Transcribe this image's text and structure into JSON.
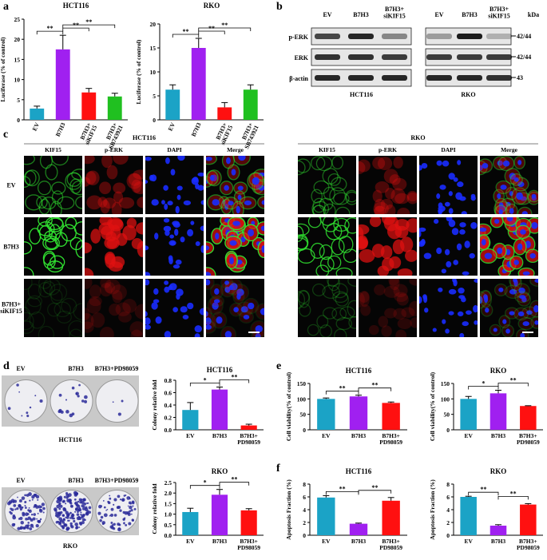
{
  "panel_labels": [
    "a",
    "b",
    "c",
    "d",
    "e",
    "f"
  ],
  "chart_data": [
    {
      "type": "bar",
      "title": "HCT116",
      "y_label": "Luciferase (% of control)",
      "categories": [
        "EV",
        "B7H3",
        "B7H3+\nsiKIF15",
        "B7H3+\nSB743921"
      ],
      "values": [
        2.8,
        17.5,
        6.8,
        5.8
      ],
      "errors": [
        0.6,
        3.5,
        1.0,
        0.8
      ],
      "colors": [
        "#1ba3c6",
        "#a020f0",
        "#ff1010",
        "#20c020"
      ],
      "ylim": [
        0,
        25
      ],
      "yticks": [
        0,
        5,
        10,
        15,
        20,
        25
      ],
      "annotations": [
        "**",
        "**",
        "**"
      ]
    },
    {
      "type": "bar",
      "title": "RKO",
      "y_label": "Luciferase (% of control)",
      "categories": [
        "EV",
        "B7H3",
        "B7H3+\nsiKIF15",
        "B7H3+\nSB743921"
      ],
      "values": [
        6.3,
        15,
        2.6,
        6.3
      ],
      "errors": [
        1.0,
        2.0,
        1.0,
        1.0
      ],
      "colors": [
        "#1ba3c6",
        "#a020f0",
        "#ff1010",
        "#20c020"
      ],
      "ylim": [
        0,
        20
      ],
      "yticks": [
        0,
        5,
        10,
        15,
        20
      ],
      "annotations": [
        "**",
        "**",
        "**"
      ]
    },
    {
      "type": "bar",
      "title": "HCT116",
      "y_label": "Colony relative fold",
      "categories": [
        "EV",
        "B7H3",
        "B7H3+\nPD98059"
      ],
      "values": [
        0.32,
        0.65,
        0.07
      ],
      "errors": [
        0.12,
        0.04,
        0.02
      ],
      "colors": [
        "#1ba3c6",
        "#a020f0",
        "#ff1010"
      ],
      "ylim": [
        0,
        0.8
      ],
      "yticks": [
        {
          "value": 0,
          "label": "0.0"
        },
        0.2,
        0.4,
        0.6,
        0.8
      ],
      "annotations": [
        "*",
        "**"
      ]
    },
    {
      "type": "bar",
      "title": "RKO",
      "y_label": "Colony relative fold",
      "categories": [
        "EV",
        "B7H3",
        "B7H3+\nPD98059"
      ],
      "values": [
        1.1,
        1.92,
        1.18
      ],
      "errors": [
        0.18,
        0.25,
        0.08
      ],
      "colors": [
        "#1ba3c6",
        "#a020f0",
        "#ff1010"
      ],
      "ylim": [
        0,
        2.5
      ],
      "yticks": [
        {
          "value": 0,
          "label": "0.0"
        },
        0.5,
        {
          "value": 1,
          "label": "1.0"
        },
        1.5,
        {
          "value": 2,
          "label": "2.0"
        },
        2.5
      ],
      "annotations": [
        "*",
        "**"
      ]
    },
    {
      "type": "bar",
      "title": "HCT116",
      "y_label": "Cell viability(% of control)",
      "categories": [
        "EV",
        "B7H3",
        "B7H3+\nPD98059"
      ],
      "values": [
        100,
        108,
        87
      ],
      "errors": [
        3,
        4,
        3
      ],
      "colors": [
        "#1ba3c6",
        "#a020f0",
        "#ff1010"
      ],
      "ylim": [
        0,
        150
      ],
      "yticks": [
        0,
        50,
        100,
        150
      ],
      "annotations": [
        "**",
        "**"
      ]
    },
    {
      "type": "bar",
      "title": "RKO",
      "y_label": "Cell viability(% of control)",
      "categories": [
        "EV",
        "B7H3",
        "B7H3+\nPD98059"
      ],
      "values": [
        100,
        118,
        77
      ],
      "errors": [
        8,
        10,
        1
      ],
      "colors": [
        "#1ba3c6",
        "#a020f0",
        "#ff1010"
      ],
      "ylim": [
        0,
        150
      ],
      "yticks": [
        0,
        50,
        100,
        150
      ],
      "annotations": [
        "*",
        "**"
      ]
    },
    {
      "type": "bar",
      "title": "HCT116",
      "y_label": "Apoptosis Fraction (%)",
      "categories": [
        "EV",
        "B7H3",
        "B7H3+\nPD98059"
      ],
      "values": [
        5.9,
        1.8,
        5.4
      ],
      "errors": [
        0.3,
        0.1,
        0.5
      ],
      "colors": [
        "#1ba3c6",
        "#a020f0",
        "#ff1010"
      ],
      "ylim": [
        0,
        8
      ],
      "yticks": [
        0,
        2,
        4,
        6,
        8
      ],
      "annotations": [
        "**",
        "**"
      ]
    },
    {
      "type": "bar",
      "title": "RKO",
      "y_label": "Apoptosis Fraction (%)",
      "categories": [
        "EV",
        "B7H3",
        "B7H3+\nPD98059"
      ],
      "values": [
        6.0,
        1.5,
        4.8
      ],
      "errors": [
        0.1,
        0.15,
        0.15
      ],
      "colors": [
        "#1ba3c6",
        "#a020f0",
        "#ff1010"
      ],
      "ylim": [
        0,
        8
      ],
      "yticks": [
        0,
        2,
        4,
        6,
        8
      ],
      "annotations": [
        "**",
        "**"
      ]
    }
  ],
  "western_blot": {
    "lanes": [
      "EV",
      "B7H3",
      "B7H3+\nsiKIF15"
    ],
    "unit": "kDa",
    "rows": [
      {
        "label": "p-ERK",
        "kda": "42/44"
      },
      {
        "label": "ERK",
        "kda": "42/44"
      },
      {
        "label": "β-actin",
        "kda": "43"
      }
    ],
    "cell_lines": [
      "HCT116",
      "RKO"
    ]
  },
  "immunofluorescence": {
    "cell_lines": [
      "HCT116",
      "RKO"
    ],
    "channels": [
      "KIF15",
      "p-ERK",
      "DAPI",
      "Merge"
    ],
    "groups": [
      "EV",
      "B7H3",
      "B7H3+\nsiKIF15"
    ]
  },
  "colony_plates": {
    "groups": [
      "EV",
      "B7H3",
      "B7H3+PD98059"
    ],
    "cell_lines": [
      "HCT116",
      "RKO"
    ]
  }
}
